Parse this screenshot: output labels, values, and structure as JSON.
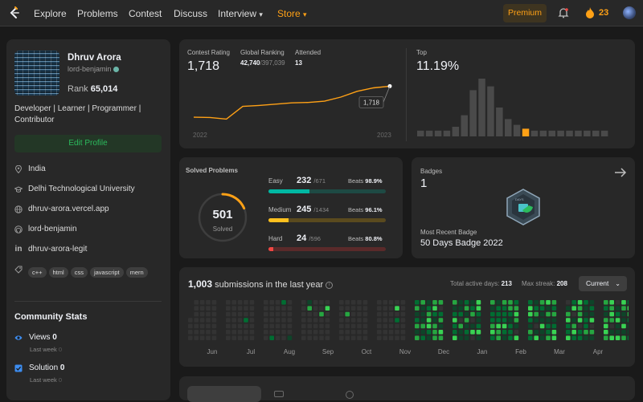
{
  "nav": {
    "items": [
      "Explore",
      "Problems",
      "Contest",
      "Discuss",
      "Interview",
      "Store"
    ],
    "interview_caret": "▾",
    "store_caret": "▾",
    "premium": "Premium",
    "streak": "23"
  },
  "profile": {
    "name": "Dhruv Arora",
    "username": "lord-benjamin",
    "rank_label": "Rank",
    "rank": "65,014",
    "bio": "Developer | Learner | Programmer | Contributor",
    "edit": "Edit Profile",
    "location": "India",
    "school": "Delhi Technological University",
    "website": "dhruv-arora.vercel.app",
    "github": "lord-benjamin",
    "linkedin": "dhruv-arora-legit",
    "tags": [
      "c++",
      "html",
      "css",
      "javascript",
      "mern"
    ]
  },
  "community": {
    "title": "Community Stats",
    "views_label": "Views",
    "views": "0",
    "views_sub": "Last week",
    "views_sub_val": "0",
    "solution_label": "Solution",
    "solution": "0",
    "solution_sub": "Last week",
    "solution_sub_val": "0"
  },
  "contest": {
    "rating_label": "Contest Rating",
    "rating": "1,718",
    "global_label": "Global Ranking",
    "global": "42,740",
    "global_total": "/397,039",
    "attended_label": "Attended",
    "attended": "13",
    "x_start": "2022",
    "x_end": "2023",
    "tooltip": "1,718",
    "top_label": "Top",
    "top_pct": "11.19%"
  },
  "chart_data": [
    {
      "type": "line",
      "title": "Contest Rating",
      "x": [
        1,
        2,
        3,
        4,
        5,
        6,
        7,
        8,
        9,
        10,
        11,
        12,
        13
      ],
      "values": [
        1499,
        1497,
        1486,
        1575,
        1582,
        1591,
        1600,
        1603,
        1612,
        1641,
        1682,
        1706,
        1718
      ],
      "x_tick_labels": [
        "2022",
        "2023"
      ],
      "ylim": [
        1420,
        1760
      ],
      "grid": false
    },
    {
      "type": "bar",
      "title": "Top",
      "values": [
        3,
        3,
        3,
        3,
        5,
        11,
        24,
        30,
        26,
        15,
        9,
        6,
        4,
        3,
        3,
        3,
        3,
        3,
        3,
        3,
        3,
        3
      ],
      "highlight_index": 12,
      "colors": {
        "normal": "#4a4a4a",
        "highlight": "#ffa116"
      }
    }
  ],
  "solved": {
    "title": "Solved Problems",
    "total": "501",
    "total_label": "Solved",
    "easy_label": "Easy",
    "easy": "232",
    "easy_total": "/671",
    "easy_beats": "98.9%",
    "easy_frac": 0.346,
    "medium_label": "Medium",
    "medium": "245",
    "medium_total": "/1434",
    "medium_beats": "96.1%",
    "medium_frac": 0.171,
    "hard_label": "Hard",
    "hard": "24",
    "hard_total": "/596",
    "hard_beats": "80.8%",
    "hard_frac": 0.04,
    "beats_label": "Beats",
    "colors": {
      "easy": "#00b8a3",
      "medium": "#ffc01e",
      "hard": "#ef4743",
      "ring": "#ffa116"
    }
  },
  "badges": {
    "title": "Badges",
    "count": "1",
    "recent_label": "Most Recent Badge",
    "recent": "50 Days Badge 2022",
    "badge_text": "DAYS"
  },
  "submissions": {
    "count": "1,003",
    "text": "submissions in the last year",
    "active_label": "Total active days:",
    "active": "213",
    "streak_label": "Max streak:",
    "streak": "208",
    "dropdown": "Current",
    "months": [
      "Jun",
      "Jul",
      "Aug",
      "Sep",
      "Oct",
      "Nov",
      "Dec",
      "Jan",
      "Feb",
      "Mar",
      "Apr"
    ]
  }
}
